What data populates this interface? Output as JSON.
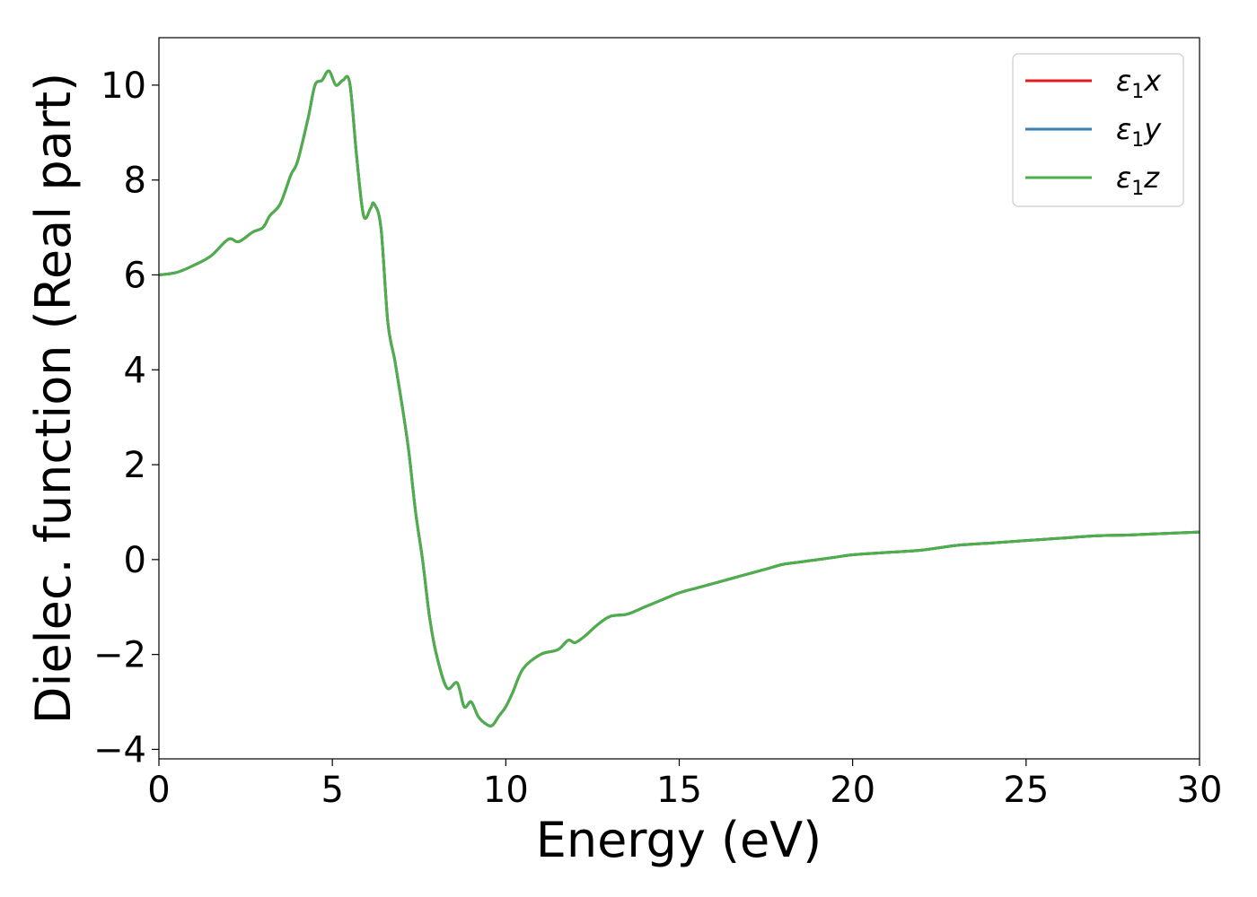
{
  "chart_data": {
    "type": "line",
    "title": "",
    "xlabel": "Energy (eV)",
    "ylabel": "Dielec. function (Real part)",
    "xlim": [
      0,
      30
    ],
    "ylim": [
      -4.2,
      11
    ],
    "xticks": [
      0,
      5,
      10,
      15,
      20,
      25,
      30
    ],
    "xtick_labels": [
      "0",
      "5",
      "10",
      "15",
      "20",
      "25",
      "30"
    ],
    "yticks": [
      -4,
      -2,
      0,
      2,
      4,
      6,
      8,
      10
    ],
    "ytick_labels": [
      "−4",
      "−2",
      "0",
      "2",
      "4",
      "6",
      "8",
      "10"
    ],
    "grid": false,
    "legend_position": "top-right",
    "x": [
      0,
      0.5,
      1.0,
      1.5,
      2.0,
      2.3,
      2.7,
      3.0,
      3.2,
      3.5,
      3.8,
      4.0,
      4.3,
      4.5,
      4.7,
      4.9,
      5.1,
      5.3,
      5.5,
      5.7,
      5.9,
      6.1,
      6.2,
      6.4,
      6.6,
      6.8,
      7.0,
      7.2,
      7.4,
      7.6,
      7.8,
      8.0,
      8.3,
      8.6,
      8.8,
      9.0,
      9.2,
      9.4,
      9.6,
      9.8,
      10.0,
      10.2,
      10.5,
      11.0,
      11.5,
      11.8,
      12.0,
      12.3,
      12.6,
      13.0,
      13.5,
      14.0,
      14.5,
      15.0,
      15.5,
      16.0,
      16.5,
      17.0,
      17.5,
      18.0,
      18.5,
      19.0,
      19.5,
      20.0,
      21.0,
      22.0,
      23.0,
      24.0,
      25.0,
      26.0,
      27.0,
      28.0,
      29.0,
      30.0
    ],
    "series": [
      {
        "name": "x",
        "color": "#e41a1c",
        "values": [
          6.0,
          6.05,
          6.2,
          6.4,
          6.75,
          6.7,
          6.9,
          7.0,
          7.25,
          7.5,
          8.1,
          8.4,
          9.3,
          10.0,
          10.1,
          10.3,
          10.0,
          10.1,
          10.05,
          8.5,
          7.25,
          7.4,
          7.5,
          7.0,
          5.0,
          4.2,
          3.3,
          2.3,
          1.0,
          0.0,
          -1.2,
          -2.0,
          -2.7,
          -2.6,
          -3.1,
          -3.0,
          -3.3,
          -3.45,
          -3.5,
          -3.3,
          -3.1,
          -2.8,
          -2.3,
          -2.0,
          -1.9,
          -1.7,
          -1.75,
          -1.6,
          -1.4,
          -1.2,
          -1.15,
          -1.0,
          -0.85,
          -0.7,
          -0.6,
          -0.5,
          -0.4,
          -0.3,
          -0.2,
          -0.1,
          -0.05,
          0.0,
          0.05,
          0.1,
          0.15,
          0.2,
          0.3,
          0.35,
          0.4,
          0.45,
          0.5,
          0.52,
          0.55,
          0.58
        ]
      },
      {
        "name": "y",
        "color": "#377eb8",
        "values": [
          6.0,
          6.05,
          6.2,
          6.4,
          6.75,
          6.7,
          6.9,
          7.0,
          7.25,
          7.5,
          8.1,
          8.4,
          9.3,
          10.0,
          10.1,
          10.3,
          10.0,
          10.1,
          10.05,
          8.5,
          7.25,
          7.4,
          7.5,
          7.0,
          5.0,
          4.2,
          3.3,
          2.3,
          1.0,
          0.0,
          -1.2,
          -2.0,
          -2.7,
          -2.6,
          -3.1,
          -3.0,
          -3.3,
          -3.45,
          -3.5,
          -3.3,
          -3.1,
          -2.8,
          -2.3,
          -2.0,
          -1.9,
          -1.7,
          -1.75,
          -1.6,
          -1.4,
          -1.2,
          -1.15,
          -1.0,
          -0.85,
          -0.7,
          -0.6,
          -0.5,
          -0.4,
          -0.3,
          -0.2,
          -0.1,
          -0.05,
          0.0,
          0.05,
          0.1,
          0.15,
          0.2,
          0.3,
          0.35,
          0.4,
          0.45,
          0.5,
          0.52,
          0.55,
          0.58
        ]
      },
      {
        "name": "z",
        "color": "#4daf4a",
        "values": [
          6.0,
          6.05,
          6.2,
          6.4,
          6.75,
          6.7,
          6.9,
          7.0,
          7.25,
          7.5,
          8.1,
          8.4,
          9.3,
          10.0,
          10.1,
          10.3,
          10.0,
          10.1,
          10.05,
          8.5,
          7.25,
          7.4,
          7.5,
          7.0,
          5.0,
          4.2,
          3.3,
          2.3,
          1.0,
          0.0,
          -1.2,
          -2.0,
          -2.7,
          -2.6,
          -3.1,
          -3.0,
          -3.3,
          -3.45,
          -3.5,
          -3.3,
          -3.1,
          -2.8,
          -2.3,
          -2.0,
          -1.9,
          -1.7,
          -1.75,
          -1.6,
          -1.4,
          -1.2,
          -1.15,
          -1.0,
          -0.85,
          -0.7,
          -0.6,
          -0.5,
          -0.4,
          -0.3,
          -0.2,
          -0.1,
          -0.05,
          0.0,
          0.05,
          0.1,
          0.15,
          0.2,
          0.3,
          0.35,
          0.4,
          0.45,
          0.5,
          0.52,
          0.55,
          0.58
        ]
      }
    ],
    "legend": [
      {
        "symbol": "ε",
        "subscript": "1",
        "suffix": "x",
        "color": "#e41a1c"
      },
      {
        "symbol": "ε",
        "subscript": "1",
        "suffix": "y",
        "color": "#377eb8"
      },
      {
        "symbol": "ε",
        "subscript": "1",
        "suffix": "z",
        "color": "#4daf4a"
      }
    ]
  }
}
